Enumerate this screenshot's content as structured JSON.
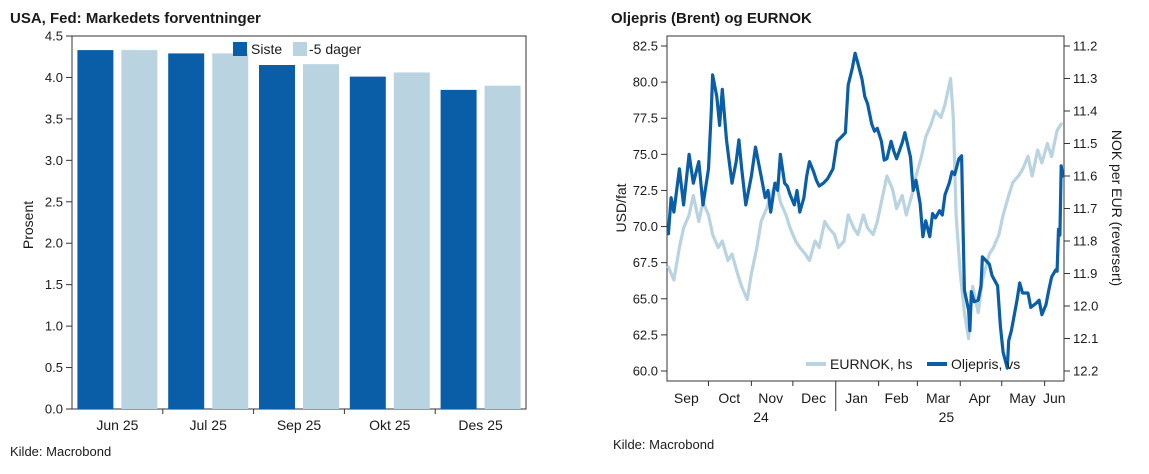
{
  "left_panel": {
    "title": "USA, Fed: Markedets forventninger",
    "source": "Kilde: Macrobond"
  },
  "right_panel": {
    "title": "Oljepris (Brent) og EURNOK",
    "source": "Kilde: Macrobond"
  },
  "colors": {
    "dark_blue": "#0a5ea8",
    "light_blue": "#b9d3e0",
    "axis": "#333333"
  },
  "chart_data": [
    {
      "type": "bar",
      "title": "USA, Fed: Markedets forventninger",
      "categories": [
        "Jun 25",
        "Jul 25",
        "Sep 25",
        "Okt 25",
        "Des 25"
      ],
      "series": [
        {
          "name": "Siste",
          "values": [
            4.33,
            4.29,
            4.15,
            4.01,
            3.85
          ],
          "color": "#0a5ea8"
        },
        {
          "name": "-5 dager",
          "values": [
            4.33,
            4.29,
            4.16,
            4.06,
            3.9
          ],
          "color": "#b9d3e0"
        }
      ],
      "ylabel": "Prosent",
      "ylim": [
        0,
        4.5
      ],
      "yticks": [
        "0.0",
        "0.5",
        "1.0",
        "1.5",
        "2.0",
        "2.5",
        "3.0",
        "3.5",
        "4.0",
        "4.5"
      ],
      "legend_position": "top-right",
      "grid": false
    },
    {
      "type": "line",
      "title": "Oljepris (Brent) og EURNOK",
      "x_tick_labels": [
        "Sep",
        "Oct",
        "Nov",
        "Dec",
        "Jan",
        "Feb",
        "Mar",
        "Apr",
        "May",
        "Jun"
      ],
      "x_year_labels": [
        "24",
        "25"
      ],
      "x_range": [
        "2024-09-01",
        "2025-06-15"
      ],
      "left_axis": {
        "label": "USD/fat",
        "ylim": [
          60.0,
          82.5
        ],
        "ticks": [
          "60.0",
          "62.5",
          "65.0",
          "67.5",
          "70.0",
          "72.5",
          "75.0",
          "77.5",
          "80.0",
          "82.5"
        ]
      },
      "right_axis": {
        "label": "NOK per EUR (reversert)",
        "ylim": [
          12.2,
          11.2
        ],
        "reversed": true,
        "ticks": [
          "11.2",
          "11.3",
          "11.4",
          "11.5",
          "11.6",
          "11.7",
          "11.8",
          "11.9",
          "12.0",
          "12.1",
          "12.2"
        ]
      },
      "legend_position": "bottom-right",
      "grid": false,
      "series": [
        {
          "name": "EURNOK, hs",
          "axis": "right",
          "color": "#b9d3e0",
          "points": [
            [
              "2024-09-02",
              11.88
            ],
            [
              "2024-09-06",
              11.92
            ],
            [
              "2024-09-10",
              11.82
            ],
            [
              "2024-09-13",
              11.76
            ],
            [
              "2024-09-17",
              11.72
            ],
            [
              "2024-09-20",
              11.66
            ],
            [
              "2024-09-24",
              11.74
            ],
            [
              "2024-09-27",
              11.68
            ],
            [
              "2024-10-01",
              11.72
            ],
            [
              "2024-10-04",
              11.78
            ],
            [
              "2024-10-08",
              11.82
            ],
            [
              "2024-10-11",
              11.8
            ],
            [
              "2024-10-15",
              11.86
            ],
            [
              "2024-10-18",
              11.84
            ],
            [
              "2024-10-22",
              11.9
            ],
            [
              "2024-10-25",
              11.94
            ],
            [
              "2024-10-29",
              11.98
            ],
            [
              "2024-11-01",
              11.9
            ],
            [
              "2024-11-05",
              11.82
            ],
            [
              "2024-11-08",
              11.74
            ],
            [
              "2024-11-12",
              11.7
            ],
            [
              "2024-11-15",
              11.66
            ],
            [
              "2024-11-19",
              11.62
            ],
            [
              "2024-11-22",
              11.68
            ],
            [
              "2024-11-26",
              11.72
            ],
            [
              "2024-11-29",
              11.76
            ],
            [
              "2024-12-03",
              11.8
            ],
            [
              "2024-12-06",
              11.82
            ],
            [
              "2024-12-10",
              11.84
            ],
            [
              "2024-12-13",
              11.86
            ],
            [
              "2024-12-17",
              11.8
            ],
            [
              "2024-12-20",
              11.82
            ],
            [
              "2024-12-24",
              11.74
            ],
            [
              "2024-12-27",
              11.76
            ],
            [
              "2024-12-31",
              11.78
            ],
            [
              "2025-01-03",
              11.82
            ],
            [
              "2025-01-07",
              11.8
            ],
            [
              "2025-01-10",
              11.72
            ],
            [
              "2025-01-14",
              11.76
            ],
            [
              "2025-01-17",
              11.78
            ],
            [
              "2025-01-21",
              11.72
            ],
            [
              "2025-01-24",
              11.76
            ],
            [
              "2025-01-28",
              11.78
            ],
            [
              "2025-01-31",
              11.74
            ],
            [
              "2025-02-04",
              11.66
            ],
            [
              "2025-02-07",
              11.6
            ],
            [
              "2025-02-11",
              11.64
            ],
            [
              "2025-02-14",
              11.7
            ],
            [
              "2025-02-18",
              11.66
            ],
            [
              "2025-02-21",
              11.72
            ],
            [
              "2025-02-25",
              11.66
            ],
            [
              "2025-02-28",
              11.6
            ],
            [
              "2025-03-04",
              11.54
            ],
            [
              "2025-03-07",
              11.48
            ],
            [
              "2025-03-11",
              11.44
            ],
            [
              "2025-03-14",
              11.4
            ],
            [
              "2025-03-18",
              11.42
            ],
            [
              "2025-03-21",
              11.38
            ],
            [
              "2025-03-25",
              11.3
            ],
            [
              "2025-03-27",
              11.42
            ],
            [
              "2025-03-29",
              11.72
            ],
            [
              "2025-04-01",
              11.9
            ],
            [
              "2025-04-04",
              12.02
            ],
            [
              "2025-04-07",
              12.1
            ],
            [
              "2025-04-10",
              11.94
            ],
            [
              "2025-04-14",
              12.02
            ],
            [
              "2025-04-17",
              11.92
            ],
            [
              "2025-04-22",
              11.84
            ],
            [
              "2025-04-25",
              11.82
            ],
            [
              "2025-04-29",
              11.78
            ],
            [
              "2025-05-02",
              11.72
            ],
            [
              "2025-05-06",
              11.66
            ],
            [
              "2025-05-09",
              11.62
            ],
            [
              "2025-05-13",
              11.6
            ],
            [
              "2025-05-16",
              11.58
            ],
            [
              "2025-05-20",
              11.54
            ],
            [
              "2025-05-23",
              11.6
            ],
            [
              "2025-05-27",
              11.52
            ],
            [
              "2025-05-30",
              11.56
            ],
            [
              "2025-06-03",
              11.5
            ],
            [
              "2025-06-06",
              11.54
            ],
            [
              "2025-06-10",
              11.46
            ],
            [
              "2025-06-13",
              11.44
            ]
          ]
        },
        {
          "name": "Oljepris, vs",
          "axis": "left",
          "color": "#0a5ea8",
          "points": [
            [
              "2024-09-02",
              69.5
            ],
            [
              "2024-09-04",
              72.0
            ],
            [
              "2024-09-06",
              71.0
            ],
            [
              "2024-09-10",
              74.0
            ],
            [
              "2024-09-13",
              71.5
            ],
            [
              "2024-09-17",
              75.0
            ],
            [
              "2024-09-20",
              73.0
            ],
            [
              "2024-09-24",
              74.5
            ],
            [
              "2024-09-27",
              71.5
            ],
            [
              "2024-10-01",
              74.0
            ],
            [
              "2024-10-03",
              78.0
            ],
            [
              "2024-10-04",
              80.5
            ],
            [
              "2024-10-07",
              79.0
            ],
            [
              "2024-10-09",
              77.0
            ],
            [
              "2024-10-11",
              79.5
            ],
            [
              "2024-10-14",
              76.0
            ],
            [
              "2024-10-16",
              74.5
            ],
            [
              "2024-10-18",
              73.0
            ],
            [
              "2024-10-21",
              74.5
            ],
            [
              "2024-10-23",
              76.0
            ],
            [
              "2024-10-25",
              74.0
            ],
            [
              "2024-10-28",
              71.5
            ],
            [
              "2024-10-30",
              72.5
            ],
            [
              "2024-11-01",
              73.5
            ],
            [
              "2024-11-04",
              75.5
            ],
            [
              "2024-11-06",
              74.5
            ],
            [
              "2024-11-08",
              73.5
            ],
            [
              "2024-11-11",
              72.0
            ],
            [
              "2024-11-13",
              72.5
            ],
            [
              "2024-11-15",
              71.0
            ],
            [
              "2024-11-18",
              73.0
            ],
            [
              "2024-11-20",
              72.5
            ],
            [
              "2024-11-22",
              75.0
            ],
            [
              "2024-11-25",
              73.0
            ],
            [
              "2024-11-27",
              72.8
            ],
            [
              "2024-11-29",
              72.2
            ],
            [
              "2024-12-02",
              71.5
            ],
            [
              "2024-12-04",
              72.5
            ],
            [
              "2024-12-06",
              71.0
            ],
            [
              "2024-12-09",
              72.0
            ],
            [
              "2024-12-11",
              73.5
            ],
            [
              "2024-12-13",
              74.5
            ],
            [
              "2024-12-16",
              73.8
            ],
            [
              "2024-12-18",
              73.2
            ],
            [
              "2024-12-20",
              72.8
            ],
            [
              "2024-12-23",
              73.0
            ],
            [
              "2024-12-26",
              73.3
            ],
            [
              "2024-12-30",
              74.0
            ],
            [
              "2025-01-02",
              75.9
            ],
            [
              "2025-01-06",
              76.3
            ],
            [
              "2025-01-08",
              76.5
            ],
            [
              "2025-01-10",
              79.8
            ],
            [
              "2025-01-13",
              81.0
            ],
            [
              "2025-01-15",
              82.0
            ],
            [
              "2025-01-17",
              81.3
            ],
            [
              "2025-01-20",
              80.2
            ],
            [
              "2025-01-22",
              79.0
            ],
            [
              "2025-01-24",
              78.5
            ],
            [
              "2025-01-27",
              77.1
            ],
            [
              "2025-01-29",
              76.6
            ],
            [
              "2025-01-31",
              76.8
            ],
            [
              "2025-02-03",
              75.9
            ],
            [
              "2025-02-05",
              74.6
            ],
            [
              "2025-02-07",
              74.7
            ],
            [
              "2025-02-10",
              75.9
            ],
            [
              "2025-02-12",
              75.2
            ],
            [
              "2025-02-14",
              74.7
            ],
            [
              "2025-02-18",
              75.8
            ],
            [
              "2025-02-20",
              76.5
            ],
            [
              "2025-02-24",
              74.8
            ],
            [
              "2025-02-26",
              72.5
            ],
            [
              "2025-02-28",
              73.2
            ],
            [
              "2025-03-03",
              71.6
            ],
            [
              "2025-03-05",
              69.3
            ],
            [
              "2025-03-07",
              70.4
            ],
            [
              "2025-03-10",
              69.3
            ],
            [
              "2025-03-12",
              70.9
            ],
            [
              "2025-03-14",
              70.6
            ],
            [
              "2025-03-17",
              71.1
            ],
            [
              "2025-03-19",
              70.8
            ],
            [
              "2025-03-21",
              72.2
            ],
            [
              "2025-03-24",
              73.0
            ],
            [
              "2025-03-26",
              73.8
            ],
            [
              "2025-03-28",
              73.6
            ],
            [
              "2025-03-31",
              74.7
            ],
            [
              "2025-04-02",
              74.9
            ],
            [
              "2025-04-03",
              70.1
            ],
            [
              "2025-04-04",
              65.6
            ],
            [
              "2025-04-07",
              64.2
            ],
            [
              "2025-04-08",
              62.8
            ],
            [
              "2025-04-09",
              65.5
            ],
            [
              "2025-04-11",
              64.8
            ],
            [
              "2025-04-14",
              64.9
            ],
            [
              "2025-04-16",
              65.9
            ],
            [
              "2025-04-17",
              67.9
            ],
            [
              "2025-04-22",
              67.4
            ],
            [
              "2025-04-24",
              66.6
            ],
            [
              "2025-04-28",
              65.9
            ],
            [
              "2025-04-30",
              63.1
            ],
            [
              "2025-05-02",
              61.3
            ],
            [
              "2025-05-05",
              60.2
            ],
            [
              "2025-05-06",
              62.1
            ],
            [
              "2025-05-08",
              62.8
            ],
            [
              "2025-05-12",
              64.9
            ],
            [
              "2025-05-14",
              66.1
            ],
            [
              "2025-05-16",
              65.4
            ],
            [
              "2025-05-20",
              65.4
            ],
            [
              "2025-05-22",
              64.4
            ],
            [
              "2025-05-26",
              64.7
            ],
            [
              "2025-05-28",
              64.9
            ],
            [
              "2025-05-30",
              63.9
            ],
            [
              "2025-06-02",
              64.6
            ],
            [
              "2025-06-04",
              65.6
            ],
            [
              "2025-06-06",
              66.5
            ],
            [
              "2025-06-09",
              67.0
            ],
            [
              "2025-06-10",
              66.9
            ],
            [
              "2025-06-11",
              69.8
            ],
            [
              "2025-06-12",
              69.4
            ],
            [
              "2025-06-13",
              74.2
            ],
            [
              "2025-06-14",
              73.5
            ]
          ]
        }
      ]
    }
  ]
}
